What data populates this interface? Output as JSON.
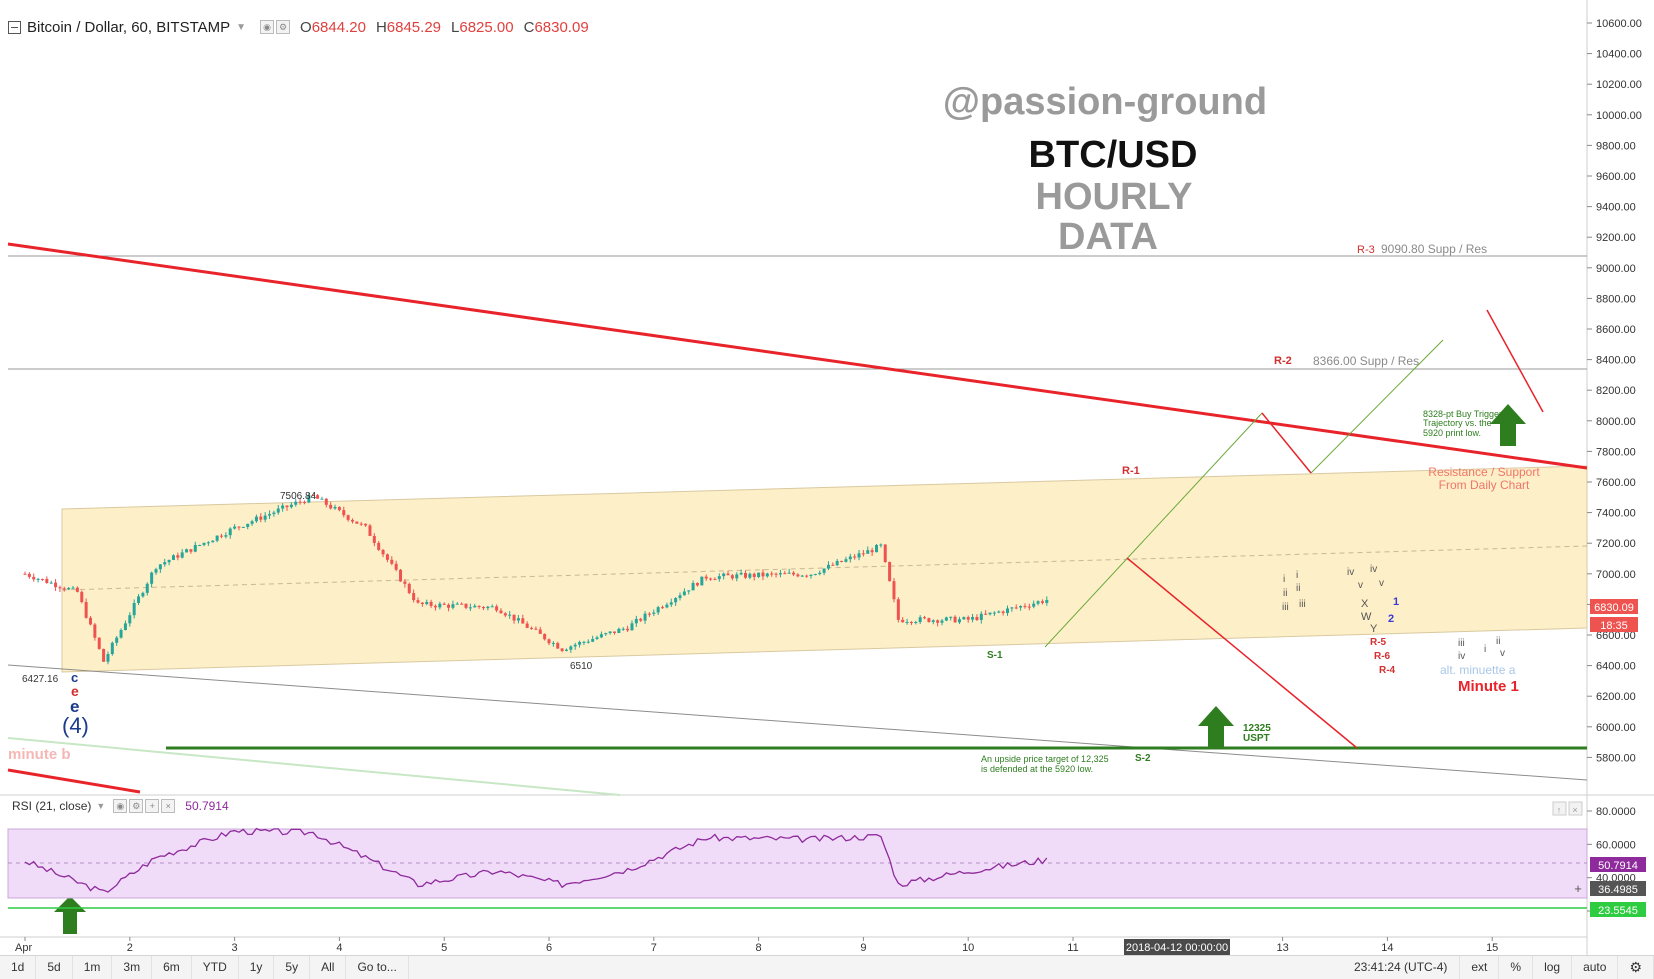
{
  "header": {
    "symbol": "Bitcoin / Dollar, 60, BITSTAMP",
    "open_k": "O",
    "open_v": "6844.20",
    "high_k": "H",
    "high_v": "6845.29",
    "low_k": "L",
    "low_v": "6825.00",
    "close_k": "C",
    "close_v": "6830.09"
  },
  "overlay": {
    "author": "@passion-ground",
    "pair": "BTC/USD",
    "tf1": "HOURLY",
    "tf2": "DATA"
  },
  "labels": {
    "r3": "R-3",
    "r3_text": "9090.80  Supp / Res",
    "r2": "R-2",
    "r2_text": "8366.00 Supp / Res",
    "r1": "R-1",
    "s1": "S-1",
    "s2": "S-2",
    "p7506": "7506.84",
    "p6510": "6510",
    "p6427": "6427.16",
    "wave_c": "c",
    "wave_e_red": "e",
    "wave_e_blue": "e",
    "wave_4": "(4)",
    "minute_b": "minute  b",
    "trigger1": "8328-pt Buy Trigger",
    "trigger2": "Trajectory vs. the",
    "trigger3": "5920 print low.",
    "resist1": "Resistance / Support",
    "resist2": "From Daily Chart",
    "target_num": "12325",
    "target_unit": "USPT",
    "target1": "An upside price target of 12,325",
    "target2": "is defended at the 5920 low.",
    "alt_minuette": "alt. minuette  a",
    "minute1": "Minute 1",
    "w_i": "i",
    "w_ii": "ii",
    "w_iii": "iii",
    "w_i2": "i",
    "w_ii2": "ii",
    "w_iii2": "iii",
    "w_iv": "iv",
    "w_v": "v",
    "w_iv2": "iv",
    "w_v2": "v",
    "w_x": "X",
    "w_w": "W",
    "w_y": "Y",
    "w_1": "1",
    "w_2": "2",
    "r5": "R-5",
    "r6": "R-6",
    "r4": "R-4",
    "w_iii3": "iii",
    "w_iv3": "iv",
    "w_i3": "i",
    "w_ii3": "ii",
    "w_v3": "v"
  },
  "price_axis": {
    "ticks": [
      "10600.00",
      "10400.00",
      "10200.00",
      "10000.00",
      "9800.00",
      "9600.00",
      "9400.00",
      "9200.00",
      "9000.00",
      "8800.00",
      "8600.00",
      "8400.00",
      "8200.00",
      "8000.00",
      "7800.00",
      "7600.00",
      "7400.00",
      "7200.00",
      "7000.00",
      "6800.00",
      "6600.00",
      "6400.00",
      "6200.00",
      "6000.00",
      "5800.00"
    ],
    "last_price": "6830.09",
    "countdown": "18:35"
  },
  "rsi": {
    "title": "RSI (21, close)",
    "value": "50.7914",
    "ticks": [
      "80.0000",
      "60.0000",
      "40.0000",
      "20.0000"
    ],
    "badge_value": "50.7914",
    "badge_ma": "36.4985",
    "badge_low": "23.5545"
  },
  "time_axis": {
    "labels": [
      "Apr",
      "2",
      "3",
      "4",
      "5",
      "6",
      "7",
      "8",
      "9",
      "10",
      "11",
      "13",
      "14",
      "15"
    ],
    "crosshair": "2018-04-12 00:00:00"
  },
  "toolbar": {
    "ranges": [
      "1d",
      "5d",
      "1m",
      "3m",
      "6m",
      "YTD",
      "1y",
      "5y",
      "All"
    ],
    "goto": "Go to...",
    "clock": "23:41:24 (UTC-4)",
    "ext": "ext",
    "pct": "%",
    "log": "log",
    "auto": "auto"
  },
  "colors": {
    "up": "#26a69a",
    "down": "#ef5350",
    "resist_line": "#e8232a",
    "support_green": "#2e7d1f",
    "channel_fill": "#fdefc8",
    "rsi_line": "#8e2a9c",
    "rsi_band": "#f0dcf8"
  },
  "chart_data": {
    "type": "candlestick",
    "symbol": "Bitcoin / Dollar",
    "interval": "60",
    "exchange": "BITSTAMP",
    "price_range": [
      5700,
      10700
    ],
    "anchors": [
      {
        "date": "2018-04-01",
        "price": 7000
      },
      {
        "date": "2018-04-01 12:00",
        "price": 6880
      },
      {
        "date": "2018-04-01 18:00",
        "price": 6427.16
      },
      {
        "date": "2018-04-02 06:00",
        "price": 7050
      },
      {
        "date": "2018-04-03 00:00",
        "price": 7300
      },
      {
        "date": "2018-04-03 18:00",
        "price": 7506.84
      },
      {
        "date": "2018-04-04 06:00",
        "price": 7300
      },
      {
        "date": "2018-04-04 18:00",
        "price": 6800
      },
      {
        "date": "2018-04-05 12:00",
        "price": 6780
      },
      {
        "date": "2018-04-06 03:00",
        "price": 6510
      },
      {
        "date": "2018-04-06 18:00",
        "price": 6650
      },
      {
        "date": "2018-04-07 12:00",
        "price": 6980
      },
      {
        "date": "2018-04-08 12:00",
        "price": 7000
      },
      {
        "date": "2018-04-09 04:00",
        "price": 7180
      },
      {
        "date": "2018-04-09 08:00",
        "price": 6700
      },
      {
        "date": "2018-04-10 00:00",
        "price": 6700
      },
      {
        "date": "2018-04-10 18:00",
        "price": 6830.09
      }
    ],
    "supp_res": [
      9090.8,
      8366.0
    ],
    "support_price": 5920,
    "target_price": 12325,
    "rsi_range": [
      10,
      85
    ],
    "rsi_bands": [
      70,
      30
    ],
    "rsi_anchors": [
      {
        "date": "2018-04-01",
        "value": 50
      },
      {
        "date": "2018-04-01 18:00",
        "value": 31
      },
      {
        "date": "2018-04-02 06:00",
        "value": 52
      },
      {
        "date": "2018-04-03 00:00",
        "value": 68
      },
      {
        "date": "2018-04-03 18:00",
        "value": 67
      },
      {
        "date": "2018-04-04 06:00",
        "value": 52
      },
      {
        "date": "2018-04-04 18:00",
        "value": 36
      },
      {
        "date": "2018-04-05 12:00",
        "value": 44
      },
      {
        "date": "2018-04-06 03:00",
        "value": 36
      },
      {
        "date": "2018-04-06 18:00",
        "value": 45
      },
      {
        "date": "2018-04-07 12:00",
        "value": 64
      },
      {
        "date": "2018-04-08 12:00",
        "value": 63
      },
      {
        "date": "2018-04-09 04:00",
        "value": 65
      },
      {
        "date": "2018-04-09 08:00",
        "value": 36
      },
      {
        "date": "2018-04-10 00:00",
        "value": 44
      },
      {
        "date": "2018-04-10 18:00",
        "value": 50.79
      }
    ]
  }
}
